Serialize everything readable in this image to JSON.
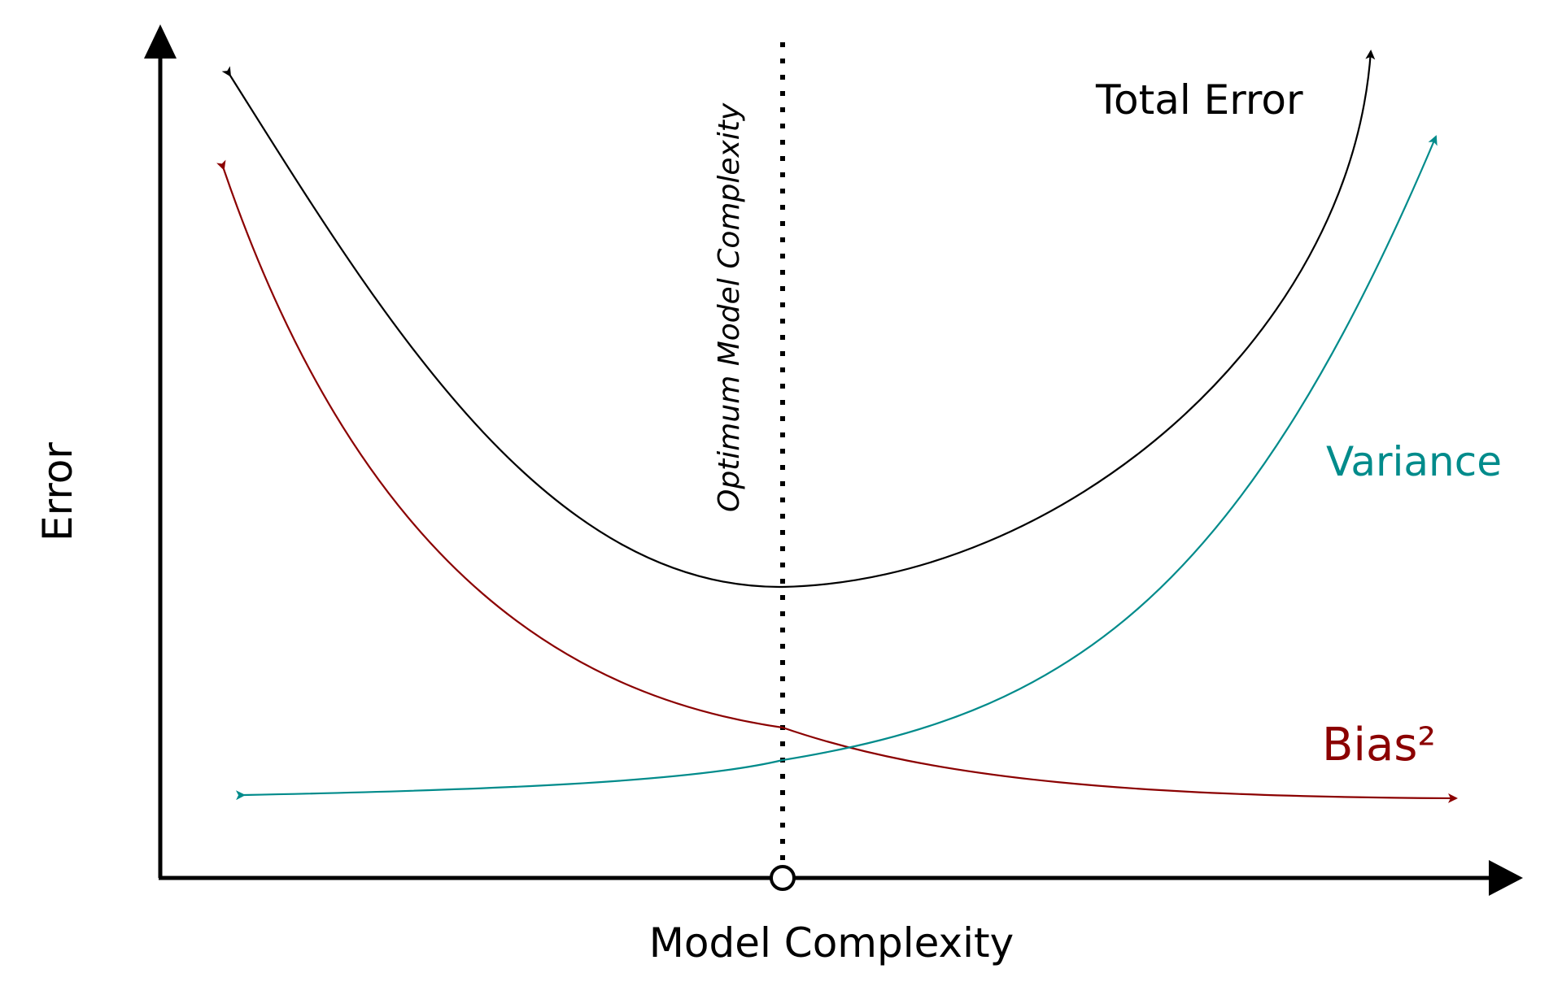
{
  "diagram": {
    "x_axis_label": "Model Complexity",
    "y_axis_label": "Error",
    "optimum_label": "Optimum Model Complexity",
    "curves": {
      "total_error": {
        "label": "Total Error",
        "color": "#000000"
      },
      "variance": {
        "label": "Variance",
        "color": "#008b8b"
      },
      "bias": {
        "label": "Bias²",
        "color": "#8b0000"
      }
    },
    "axis_color": "#000000"
  }
}
